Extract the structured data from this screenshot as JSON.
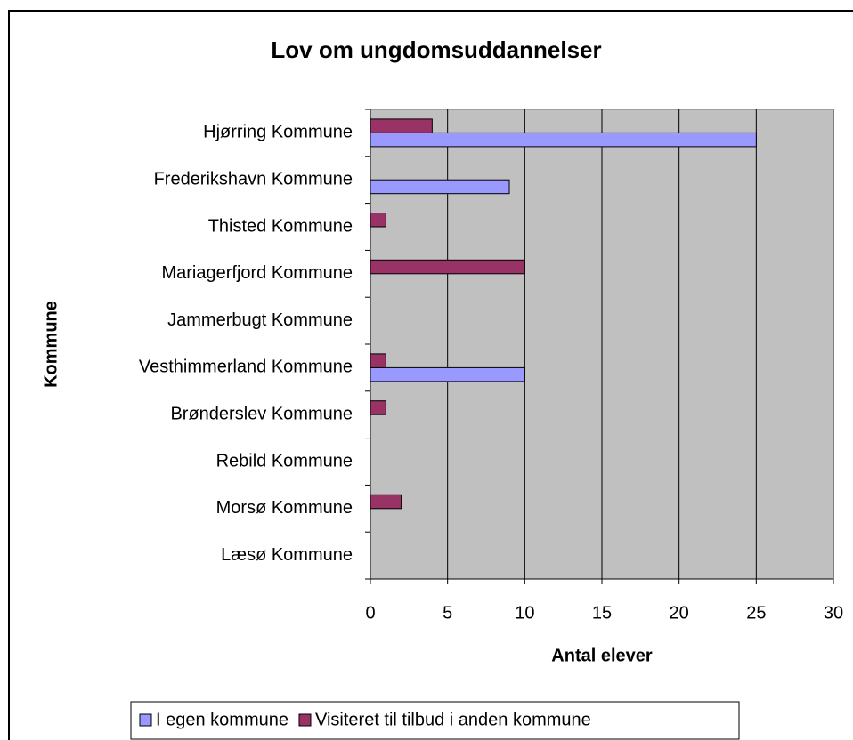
{
  "chart_data": {
    "type": "bar",
    "orientation": "horizontal",
    "title": "Lov om ungdomsuddannelser",
    "xlabel": "Antal elever",
    "ylabel": "Kommune",
    "categories": [
      "Hjørring Kommune",
      "Frederikshavn Kommune",
      "Thisted Kommune",
      "Mariagerfjord Kommune",
      "Jammerbugt Kommune",
      "Vesthimmerland Kommune",
      "Brønderslev Kommune",
      "Rebild Kommune",
      "Morsø Kommune",
      "Læsø Kommune"
    ],
    "series": [
      {
        "name": "I egen kommune",
        "color": "#9999ff",
        "values": [
          25,
          9,
          null,
          null,
          null,
          10,
          null,
          null,
          null,
          null
        ]
      },
      {
        "name": "Visiteret til tilbud i anden kommune",
        "color": "#993366",
        "values": [
          4,
          null,
          1,
          10,
          null,
          1,
          1,
          null,
          2,
          null
        ]
      }
    ],
    "xlim": [
      0,
      30
    ],
    "xticks": [
      0,
      5,
      10,
      15,
      20,
      25,
      30
    ],
    "grid": true,
    "legend": "bottom",
    "plot_background": "#c0c0c0"
  }
}
